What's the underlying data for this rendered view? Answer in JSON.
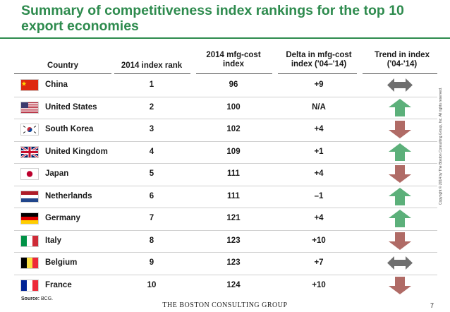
{
  "title": "Summary of competitiveness index rankings for the top 10 export economies",
  "headers": {
    "country": "Country",
    "rank": "2014 index rank",
    "mfg_cost": "2014 mfg-cost index",
    "delta": "Delta in mfg-cost index ('04–'14)",
    "trend": "Trend in index ('04-'14)"
  },
  "rows": [
    {
      "country": "China",
      "flag": "china-flag",
      "rank": "1",
      "mfg_cost": "96",
      "delta": "+9",
      "trend": "both"
    },
    {
      "country": "United States",
      "flag": "usa-flag",
      "rank": "2",
      "mfg_cost": "100",
      "delta": "N/A",
      "trend": "up"
    },
    {
      "country": "South Korea",
      "flag": "south-korea-flag",
      "rank": "3",
      "mfg_cost": "102",
      "delta": "+4",
      "trend": "down"
    },
    {
      "country": "United Kingdom",
      "flag": "uk-flag",
      "rank": "4",
      "mfg_cost": "109",
      "delta": "+1",
      "trend": "up"
    },
    {
      "country": "Japan",
      "flag": "japan-flag",
      "rank": "5",
      "mfg_cost": "111",
      "delta": "+4",
      "trend": "down"
    },
    {
      "country": "Netherlands",
      "flag": "netherlands-flag",
      "rank": "6",
      "mfg_cost": "111",
      "delta": "–1",
      "trend": "up"
    },
    {
      "country": "Germany",
      "flag": "germany-flag",
      "rank": "7",
      "mfg_cost": "121",
      "delta": "+4",
      "trend": "up"
    },
    {
      "country": "Italy",
      "flag": "italy-flag",
      "rank": "8",
      "mfg_cost": "123",
      "delta": "+10",
      "trend": "down"
    },
    {
      "country": "Belgium",
      "flag": "belgium-flag",
      "rank": "9",
      "mfg_cost": "123",
      "delta": "+7",
      "trend": "both"
    },
    {
      "country": "France",
      "flag": "france-flag",
      "rank": "10",
      "mfg_cost": "124",
      "delta": "+10",
      "trend": "down"
    }
  ],
  "source_label": "Source:",
  "source_value": "BCG.",
  "logo": "THE BOSTON CONSULTING GROUP",
  "page_number": "7",
  "copyright": "Copyright © 2014 by The Boston Consulting Group, Inc. All rights reserved.",
  "colors": {
    "accent": "#2e8b4e",
    "up": "#5cb07a",
    "down": "#b06b66",
    "both": "#6f6f6f"
  }
}
